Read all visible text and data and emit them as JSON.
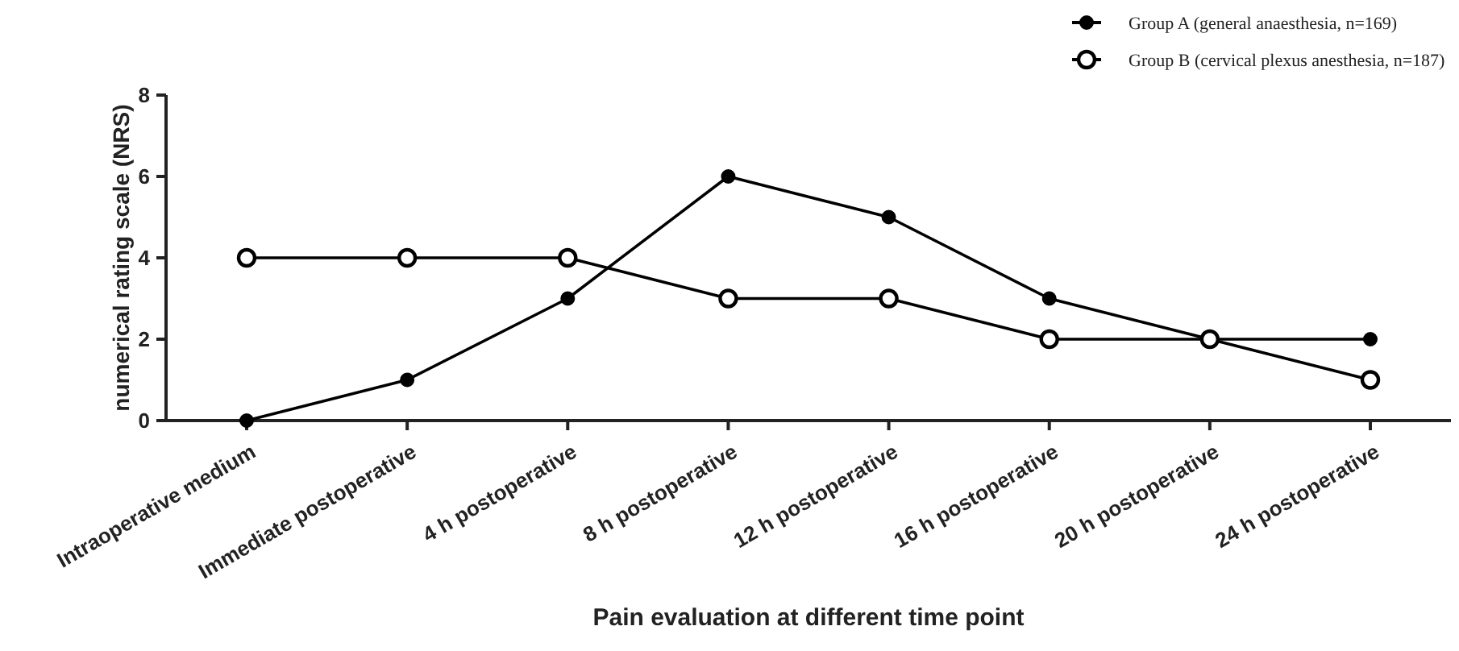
{
  "chart_data": {
    "type": "line",
    "xlabel": "Pain evaluation at different time point",
    "ylabel": "numerical rating scale (NRS)",
    "categories": [
      "Intraoperative medium",
      "Immediate postoperative",
      "4 h postoperative",
      "8 h postoperative",
      "12 h postoperative",
      "16 h postoperative",
      "20 h postoperative",
      "24 h postoperative"
    ],
    "series": [
      {
        "name": "Group A (general anaesthesia, n=169)",
        "color": "#000000",
        "values": [
          0,
          1,
          3,
          6,
          5,
          3,
          2,
          2
        ]
      },
      {
        "name": "Group B (cervical plexus anesthesia, n=187)",
        "color": "#000000",
        "values": [
          4,
          4,
          4,
          3,
          3,
          2,
          2,
          1
        ]
      }
    ],
    "ylim": [
      0,
      8
    ],
    "yticks": [
      0,
      2,
      4,
      6,
      8
    ],
    "grid": false,
    "legend": "top right",
    "marker": "circle",
    "line_style": "solid"
  }
}
